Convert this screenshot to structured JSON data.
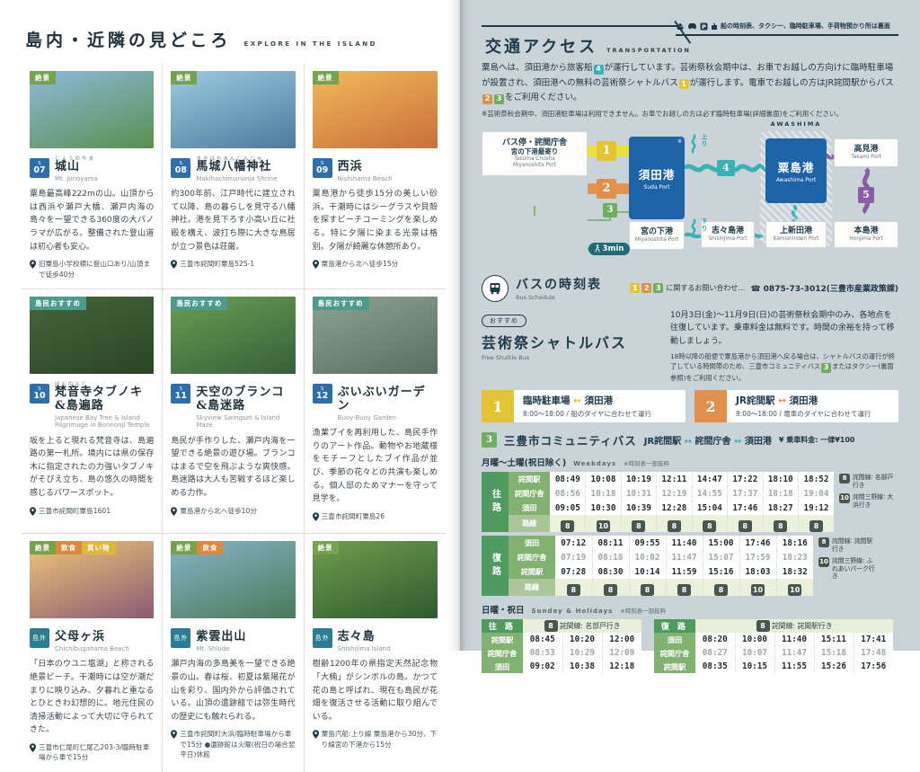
{
  "colors": {
    "navy": "#1d3a4a",
    "page_bg": "#c9d3d8",
    "port_blue": "#1e63a8",
    "yellow": "#eddc3a",
    "orange": "#e28f4b",
    "green": "#6fae60",
    "teal": "#38b2b6",
    "purple": "#8a5ca8",
    "table_green": "#4f9a5f"
  },
  "route_colors": {
    "1": "#e3c433",
    "2": "#e28f4b",
    "3": "#6fae60",
    "4": "#38b2b6",
    "5": "#8a5ca8"
  },
  "left_page": {
    "title": "島内・近隣の見どころ",
    "subtitle": "EXPLORE IN THE ISLAND",
    "badge_colors": {
      "絶景": "#76a24b",
      "島民おすすめ": "#4d9a8e",
      "飲食": "#dd8a3f",
      "買い物": "#dfb83c"
    },
    "cards": [
      {
        "badges": [
          "絶景"
        ],
        "num": "07",
        "num_prefix": "S",
        "furigana": "じょうのやま",
        "title": "城山",
        "en": "Mt. Jonoyama",
        "desc": "粟島最高峰222mの山。山頂からは西浜や瀬戸大橋、瀬戸内海の島々を一望できる360度の大パノラマが広がる。整備された登山道は初心者も安心。",
        "access": "旧粟島小学校横に登山口あり/山頂まで徒歩40分",
        "photo": [
          "#8fb9dc",
          "#5a8f4e"
        ]
      },
      {
        "badges": [
          "絶景"
        ],
        "num": "08",
        "num_prefix": "S",
        "furigana": "まきはちまんじんじゃ",
        "title": "馬城八幡神社",
        "en": "Makihachimanjinja Shrine",
        "desc": "約300年前、江戸時代に建立されて以降、島の暮らしを見守る八幡神社。港を見下ろす小高い丘に社殿を構え、波打ち際に大きな鳥居が立つ景色は荘厳。",
        "access": "三豊市詫間町粟島525-1",
        "photo": [
          "#9ecbe0",
          "#4a7a9e"
        ]
      },
      {
        "badges": [
          "絶景"
        ],
        "num": "09",
        "num_prefix": "S",
        "furigana": "",
        "title": "西浜",
        "en": "Nishihama Beach",
        "desc": "粟島港から徒歩15分の美しい砂浜。干潮時にはシーグラスや貝殻を探すビーチコーミングを楽しめる。特に夕陽に染まる光景は格別。夕陽が綺麗な休憩所あり。",
        "access": "粟島港から北へ徒歩15分",
        "photo": [
          "#f2b95a",
          "#c96f3a"
        ]
      },
      {
        "badges": [
          "島民おすすめ"
        ],
        "num": "10",
        "num_prefix": "S",
        "furigana": "ぼんのんじ",
        "title": "梵音寺タブノキ&島遍路",
        "en": "Japanese Bay Tree & Island Pilgrimage in Bonnonji Temple",
        "desc": "坂を上ると現れる梵音寺は、島遍路の第一札所。境内には県の保存木に指定されたの力強いタブノキがそびえ立ち、島の悠久の時間を感じるパワースポット。",
        "access": "三豊市詫間町粟島1601",
        "photo": [
          "#47663b",
          "#2a4426"
        ]
      },
      {
        "badges": [
          "島民おすすめ"
        ],
        "num": "11",
        "num_prefix": "S",
        "furigana": "",
        "title": "天空のブランコ&島迷路",
        "en": "Skyview Swingset & Island Maze",
        "desc": "島民が手作りした、瀬戸内海を一望できる絶景の遊び場。ブランコはまるで空を飛ぶような爽快感。島迷路は大人も苦戦するほど楽しめる力作。",
        "access": "粟島港から北へ徒歩10分",
        "photo": [
          "#6a9e52",
          "#35603a"
        ]
      },
      {
        "badges": [
          "島民おすすめ"
        ],
        "num": "12",
        "num_prefix": "S",
        "furigana": "",
        "title": "ぶいぶいガーデン",
        "en": "Buoy-Buoy Garden",
        "desc": "漁業ブイを再利用した、島民手作りのアート作品。動物やお地蔵様をモチーフとしたブイ作品が並び、季節の花々との共演も楽しめる。個人邸のためマナーを守って見学を。",
        "access": "三豊市詫間町粟島26",
        "photo": [
          "#8ea394",
          "#5b6f60"
        ]
      },
      {
        "badges": [
          "絶景",
          "飲食",
          "買い物"
        ],
        "tag": "島外",
        "furigana": "",
        "title": "父母ヶ浜",
        "en": "Chichibugahama Beach",
        "desc": "「日本のウユニ塩湖」と称される絶景ビーチ。干潮時には空が潮だまりに映り込み、夕暮れと重なるとひときわ幻想的に。地元住民の清掃活動によって大切に守られてきた。",
        "access": "三豊市仁尾町仁尾乙203-3/臨時駐車場から車で15分",
        "photo": [
          "#f0c878",
          "#8a5a74"
        ]
      },
      {
        "badges": [
          "絶景",
          "飲食"
        ],
        "tag": "島外",
        "furigana": "",
        "title": "紫雲出山",
        "en": "Mt. Shiude",
        "desc": "瀬戸内海の多島美を一望できる絶景の山。春は桜、初夏は紫陽花が山を彩り、国内外から評価されている。山頂の遺跡館では弥生時代の歴史にも触れられる。",
        "access": "三豊市詫間町大浜/臨時駐車場から車で15分 ●遺跡館は火曜(祝日の場合翌平日)休館",
        "photo": [
          "#88b4c8",
          "#4a7a5a"
        ]
      },
      {
        "badges": [
          "絶景"
        ],
        "tag": "島外",
        "furigana": "",
        "title": "志々島",
        "en": "Shishijima Island",
        "desc": "樹齢1200年の県指定天然記念物「大楠」がシンボルの島。かつて花の島と呼ばれ、現在も島民が花畑を復活させる活動に取り組んでいる。",
        "access": "粟島汽船:上り線 粟島港から30分、下り線宮の下港から15分",
        "photo": [
          "#6f9e4e",
          "#2e5a2e"
        ]
      }
    ]
  },
  "right_page": {
    "header": {
      "title": "交通アクセス",
      "en": "TRANSPORTATION",
      "note": "船の時刻表、タクシー、臨時駐車場、手荷物預かり所は裏面"
    },
    "intro_segments": [
      {
        "t": "粟島へは、須田港から旅客船"
      },
      {
        "b": "4"
      },
      {
        "t": "が運行しています。芸術祭秋会期中は、お車でお越しの方向けに臨時駐車場が設置され、須田港への無料の芸術祭シャトルバス"
      },
      {
        "b": "1"
      },
      {
        "t": "が運行します。電車でお越しの方はJR詫間駅からバス"
      },
      {
        "b": "2"
      },
      {
        "b": "3"
      },
      {
        "t": "をご利用ください。"
      }
    ],
    "intro_note": "※芸術祭秋会期中、須田港駐車場は利用できません。お車でお越しの方は必ず臨時駐車場(詳細裏面)をご利用ください。",
    "diagram": {
      "awashima_area_label": "AWASHIMA",
      "parking": {
        "jp": "臨時駐車場",
        "en": "Temporary Parking Lot"
      },
      "jr": {
        "jp": "JR詫間駅",
        "en": "JR Takuma Station"
      },
      "busstop": {
        "jp": "バス停・詫間庁舎",
        "jp2": "宮の下港最寄り",
        "en": "Takuma Chosha",
        "en2": "Miyanoshita Port"
      },
      "suda": {
        "jp": "須田港",
        "en": "Suda Port",
        "mark": "※"
      },
      "miyanoshita": {
        "jp": "宮の下港",
        "en": "Miyanoshita Port"
      },
      "awashima": {
        "jp": "粟島港",
        "en": "Awashima Port"
      },
      "takami": {
        "jp": "高見港",
        "en": "Takami Port"
      },
      "shishijima": {
        "jp": "志々島港",
        "en": "Shishijima Port"
      },
      "kamishinden": {
        "jp": "上新田港",
        "en": "Kamishinden Port"
      },
      "honjima": {
        "jp": "本島港",
        "en": "Honjima Port"
      },
      "walk": "3min",
      "up": "上り",
      "down": "下り",
      "ferry4": "4",
      "ferry5": "5"
    },
    "bus_schedule": {
      "title": "バスの時刻表",
      "en": "Bus Schedule",
      "contact_badges": [
        "1",
        "2",
        "3"
      ],
      "contact_text": "に関するお問い合わせ…",
      "phone": "☎ 0875-73-3012(三豊市産業政策課)"
    },
    "shuttle": {
      "badge": "おすすめ",
      "title": "芸術祭シャトルバス",
      "en": "Free Shuttle Bus",
      "desc": "10月3日(金)〜11月9日(日)の芸術祭秋会期中のみ、各地点を往復しています。乗車料金は無料です。時間の余裕を持って移動しましょう。",
      "note_segments": [
        {
          "t": "18時以降の船便で粟島港から須田港へ戻る場合は、シャトルバスの運行が終了している時間帯のため、三豊市コミュニティバス"
        },
        {
          "b": "3"
        },
        {
          "t": "またはタクシー(裏面参照)をご利用ください。"
        }
      ]
    },
    "shuttle_routes": [
      {
        "num": "1",
        "from": "臨時駐車場",
        "to": "須田港",
        "sub": "8:00〜18:00 / 船のダイヤに合わせて運行"
      },
      {
        "num": "2",
        "from": "JR詫間駅",
        "to": "須田港",
        "sub": "8:00〜18:00 / 電車のダイヤに合わせて運行"
      }
    ],
    "route3": {
      "num": "3",
      "name": "三豊市コミュニティバス",
      "path": [
        "JR詫間駅",
        "詫間庁舎",
        "須田港"
      ],
      "fare": "¥ 乗車料金: 一律¥100"
    },
    "weekday": {
      "label": "月曜〜土曜(祝日除く)",
      "en": "Weekdays",
      "note": "※時刻表一部抜粋",
      "outbound": {
        "dir": "往路",
        "route_label": "路線",
        "stops": [
          "詫間駅",
          "詫間庁舎",
          "須田"
        ],
        "times": [
          [
            "08:49",
            "10:08",
            "10:19",
            "12:11",
            "14:47",
            "17:22",
            "18:10",
            "18:52"
          ],
          [
            "08:56",
            "10:18",
            "10:31",
            "12:19",
            "14:55",
            "17:37",
            "18:18",
            "19:04"
          ],
          [
            "09:05",
            "10:30",
            "10:39",
            "12:28",
            "15:04",
            "17:46",
            "18:27",
            "19:12"
          ]
        ],
        "routes": [
          "8",
          "10",
          "8",
          "8",
          "8",
          "8",
          "8",
          "8"
        ]
      },
      "outbound_legend": [
        {
          "num": "8",
          "text": "詫間線: 名部戸行き"
        },
        {
          "num": "10",
          "text": "詫間三野線: 大浜行き"
        }
      ],
      "inbound": {
        "dir": "復路",
        "route_label": "路線",
        "stops": [
          "須田",
          "詫間庁舎",
          "詫間駅"
        ],
        "times": [
          [
            "07:12",
            "08:11",
            "09:55",
            "11:40",
            "15:00",
            "17:46",
            "18:16"
          ],
          [
            "07:19",
            "08:18",
            "10:02",
            "11:47",
            "15:07",
            "17:59",
            "18:23"
          ],
          [
            "07:28",
            "08:30",
            "10:14",
            "11:59",
            "15:16",
            "18:03",
            "18:32"
          ]
        ],
        "routes": [
          "8",
          "8",
          "8",
          "8",
          "8",
          "10",
          "10"
        ]
      },
      "inbound_legend": [
        {
          "num": "8",
          "text": "詫間線: 詫間駅行き"
        },
        {
          "num": "10",
          "text": "詫間三野線: ふれあいパーク行き"
        }
      ]
    },
    "holiday": {
      "label": "日曜・祝日",
      "en": "Sunday & Holidays",
      "note": "※時刻表一部抜粋",
      "outbound": {
        "dir": "往 路",
        "legend": {
          "num": "8",
          "text": "詫間線: 名部戸行き"
        },
        "stops": [
          "詫間駅",
          "詫間庁舎",
          "須田"
        ],
        "times": [
          [
            "08:45",
            "10:20",
            "12:00"
          ],
          [
            "08:53",
            "10:29",
            "12:09"
          ],
          [
            "09:02",
            "10:38",
            "12:18"
          ]
        ]
      },
      "inbound": {
        "dir": "復 路",
        "legend": {
          "num": "8",
          "text": "詫間線: 詫間駅行き"
        },
        "stops": [
          "須田",
          "詫間庁舎",
          "詫間駅"
        ],
        "times": [
          [
            "08:20",
            "10:00",
            "11:40",
            "15:11",
            "17:41"
          ],
          [
            "08:27",
            "10:07",
            "11:47",
            "15:18",
            "17:48"
          ],
          [
            "08:35",
            "10:15",
            "11:55",
            "15:26",
            "17:56"
          ]
        ]
      }
    }
  }
}
